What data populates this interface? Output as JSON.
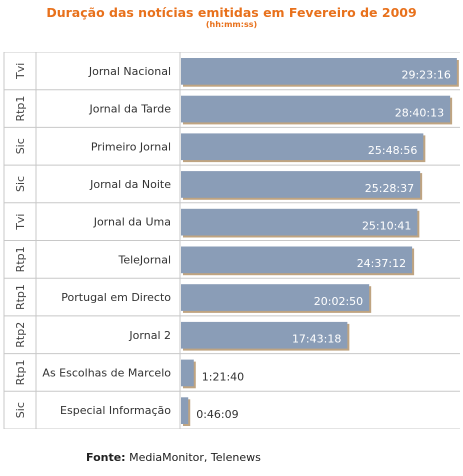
{
  "title": "Duração das notícias emitidas em Fevereiro de 2009",
  "subtitle": "(hh:mm:ss)",
  "source": {
    "label": "Fonte:",
    "text": "MediaMonitor, Telenews"
  },
  "colors": {
    "title": "#e8711c",
    "bar": "#8a9db7",
    "bar_shadow": "#8b5a1a",
    "grid": "#c8c8c8"
  },
  "chart_data": {
    "type": "bar",
    "orientation": "horizontal",
    "title": "Duração das notícias emitidas em Fevereiro de 2009",
    "subtitle": "(hh:mm:ss)",
    "groups": [
      "Tvi",
      "Rtp1",
      "Sic",
      "Sic",
      "Tvi",
      "Rtp1",
      "Rtp1",
      "Rtp2",
      "Rtp1",
      "Sic"
    ],
    "categories": [
      "Jornal Nacional",
      "Jornal da Tarde",
      "Primeiro Jornal",
      "Jornal da Noite",
      "Jornal da Uma",
      "TeleJornal",
      "Portugal em Directo",
      "Jornal 2",
      "As Escolhas de Marcelo",
      "Especial Informação"
    ],
    "labels": [
      "29:23:16",
      "28:40:13",
      "25:48:56",
      "25:28:37",
      "25:10:41",
      "24:37:12",
      "20:02:50",
      "17:43:18",
      "1:21:40",
      "0:46:09"
    ],
    "values_seconds": [
      105796,
      103213,
      92936,
      91717,
      90641,
      88632,
      72170,
      63798,
      4900,
      2769
    ],
    "xlim_seconds": [
      0,
      107000
    ],
    "grid": true,
    "legend": "none"
  }
}
